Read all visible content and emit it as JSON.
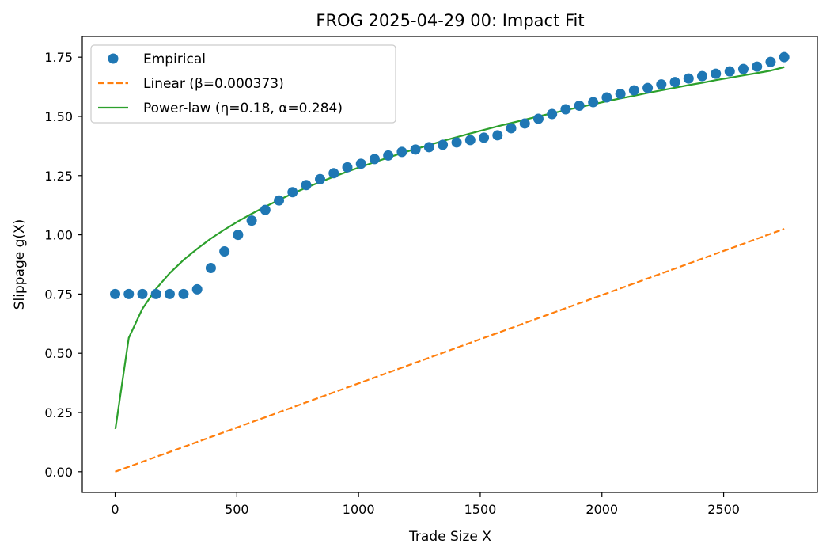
{
  "chart_data": {
    "type": "scatter",
    "title": "FROG 2025-04-29 00: Impact Fit",
    "xlabel": "Trade Size X",
    "ylabel": "Slippage g(X)",
    "xlim": [
      -135,
      2885
    ],
    "ylim": [
      -0.0875,
      1.8375
    ],
    "x_ticks": [
      0,
      500,
      1000,
      1500,
      2000,
      2500
    ],
    "x_tick_labels": [
      "0",
      "500",
      "1000",
      "1500",
      "2000",
      "2500"
    ],
    "y_ticks": [
      0,
      0.25,
      0.5,
      0.75,
      1.0,
      1.25,
      1.5,
      1.75
    ],
    "y_tick_labels": [
      "0.00",
      "0.25",
      "0.50",
      "0.75",
      "1.00",
      "1.25",
      "1.50",
      "1.75"
    ],
    "grid": false,
    "legend_position": "top-left",
    "series": [
      {
        "name": "Empirical",
        "style": "markers",
        "color": "#1f77b4",
        "x": [
          0,
          56,
          112,
          168,
          224,
          281,
          337,
          393,
          449,
          505,
          561,
          617,
          673,
          729,
          785,
          842,
          898,
          954,
          1010,
          1066,
          1122,
          1178,
          1234,
          1290,
          1346,
          1403,
          1459,
          1515,
          1571,
          1627,
          1683,
          1739,
          1795,
          1851,
          1907,
          1964,
          2020,
          2076,
          2132,
          2188,
          2244,
          2300,
          2356,
          2412,
          2468,
          2525,
          2581,
          2637,
          2693,
          2749
        ],
        "y": [
          0.75,
          0.75,
          0.75,
          0.75,
          0.75,
          0.75,
          0.77,
          0.86,
          0.93,
          1.0,
          1.06,
          1.105,
          1.145,
          1.18,
          1.21,
          1.235,
          1.26,
          1.285,
          1.3,
          1.32,
          1.335,
          1.35,
          1.36,
          1.37,
          1.38,
          1.39,
          1.4,
          1.41,
          1.42,
          1.45,
          1.47,
          1.49,
          1.51,
          1.53,
          1.545,
          1.56,
          1.58,
          1.595,
          1.61,
          1.62,
          1.635,
          1.645,
          1.66,
          1.67,
          1.68,
          1.69,
          1.7,
          1.71,
          1.73,
          1.75
        ]
      },
      {
        "name": "Linear (β=0.000373)",
        "style": "dashed",
        "color": "#ff7f0e",
        "x": [
          0,
          2749
        ],
        "y": [
          0,
          1.025
        ]
      },
      {
        "name": "Power-law (η=0.18, α=0.284)",
        "style": "solid",
        "color": "#2ca02c",
        "x": [
          1,
          56,
          112,
          168,
          224,
          281,
          337,
          393,
          449,
          505,
          561,
          617,
          673,
          729,
          785,
          842,
          898,
          954,
          1010,
          1066,
          1122,
          1178,
          1234,
          1290,
          1346,
          1403,
          1459,
          1515,
          1571,
          1627,
          1683,
          1739,
          1795,
          1851,
          1907,
          1964,
          2020,
          2076,
          2132,
          2188,
          2244,
          2300,
          2356,
          2412,
          2468,
          2525,
          2581,
          2637,
          2693,
          2749
        ],
        "y": [
          0.18,
          0.565,
          0.688,
          0.772,
          0.838,
          0.894,
          0.941,
          0.984,
          1.022,
          1.057,
          1.089,
          1.119,
          1.147,
          1.174,
          1.199,
          1.223,
          1.245,
          1.267,
          1.287,
          1.307,
          1.326,
          1.345,
          1.362,
          1.379,
          1.396,
          1.412,
          1.428,
          1.443,
          1.458,
          1.472,
          1.486,
          1.5,
          1.513,
          1.526,
          1.539,
          1.551,
          1.564,
          1.576,
          1.587,
          1.599,
          1.61,
          1.621,
          1.632,
          1.642,
          1.653,
          1.663,
          1.673,
          1.683,
          1.693,
          1.708
        ]
      }
    ]
  }
}
